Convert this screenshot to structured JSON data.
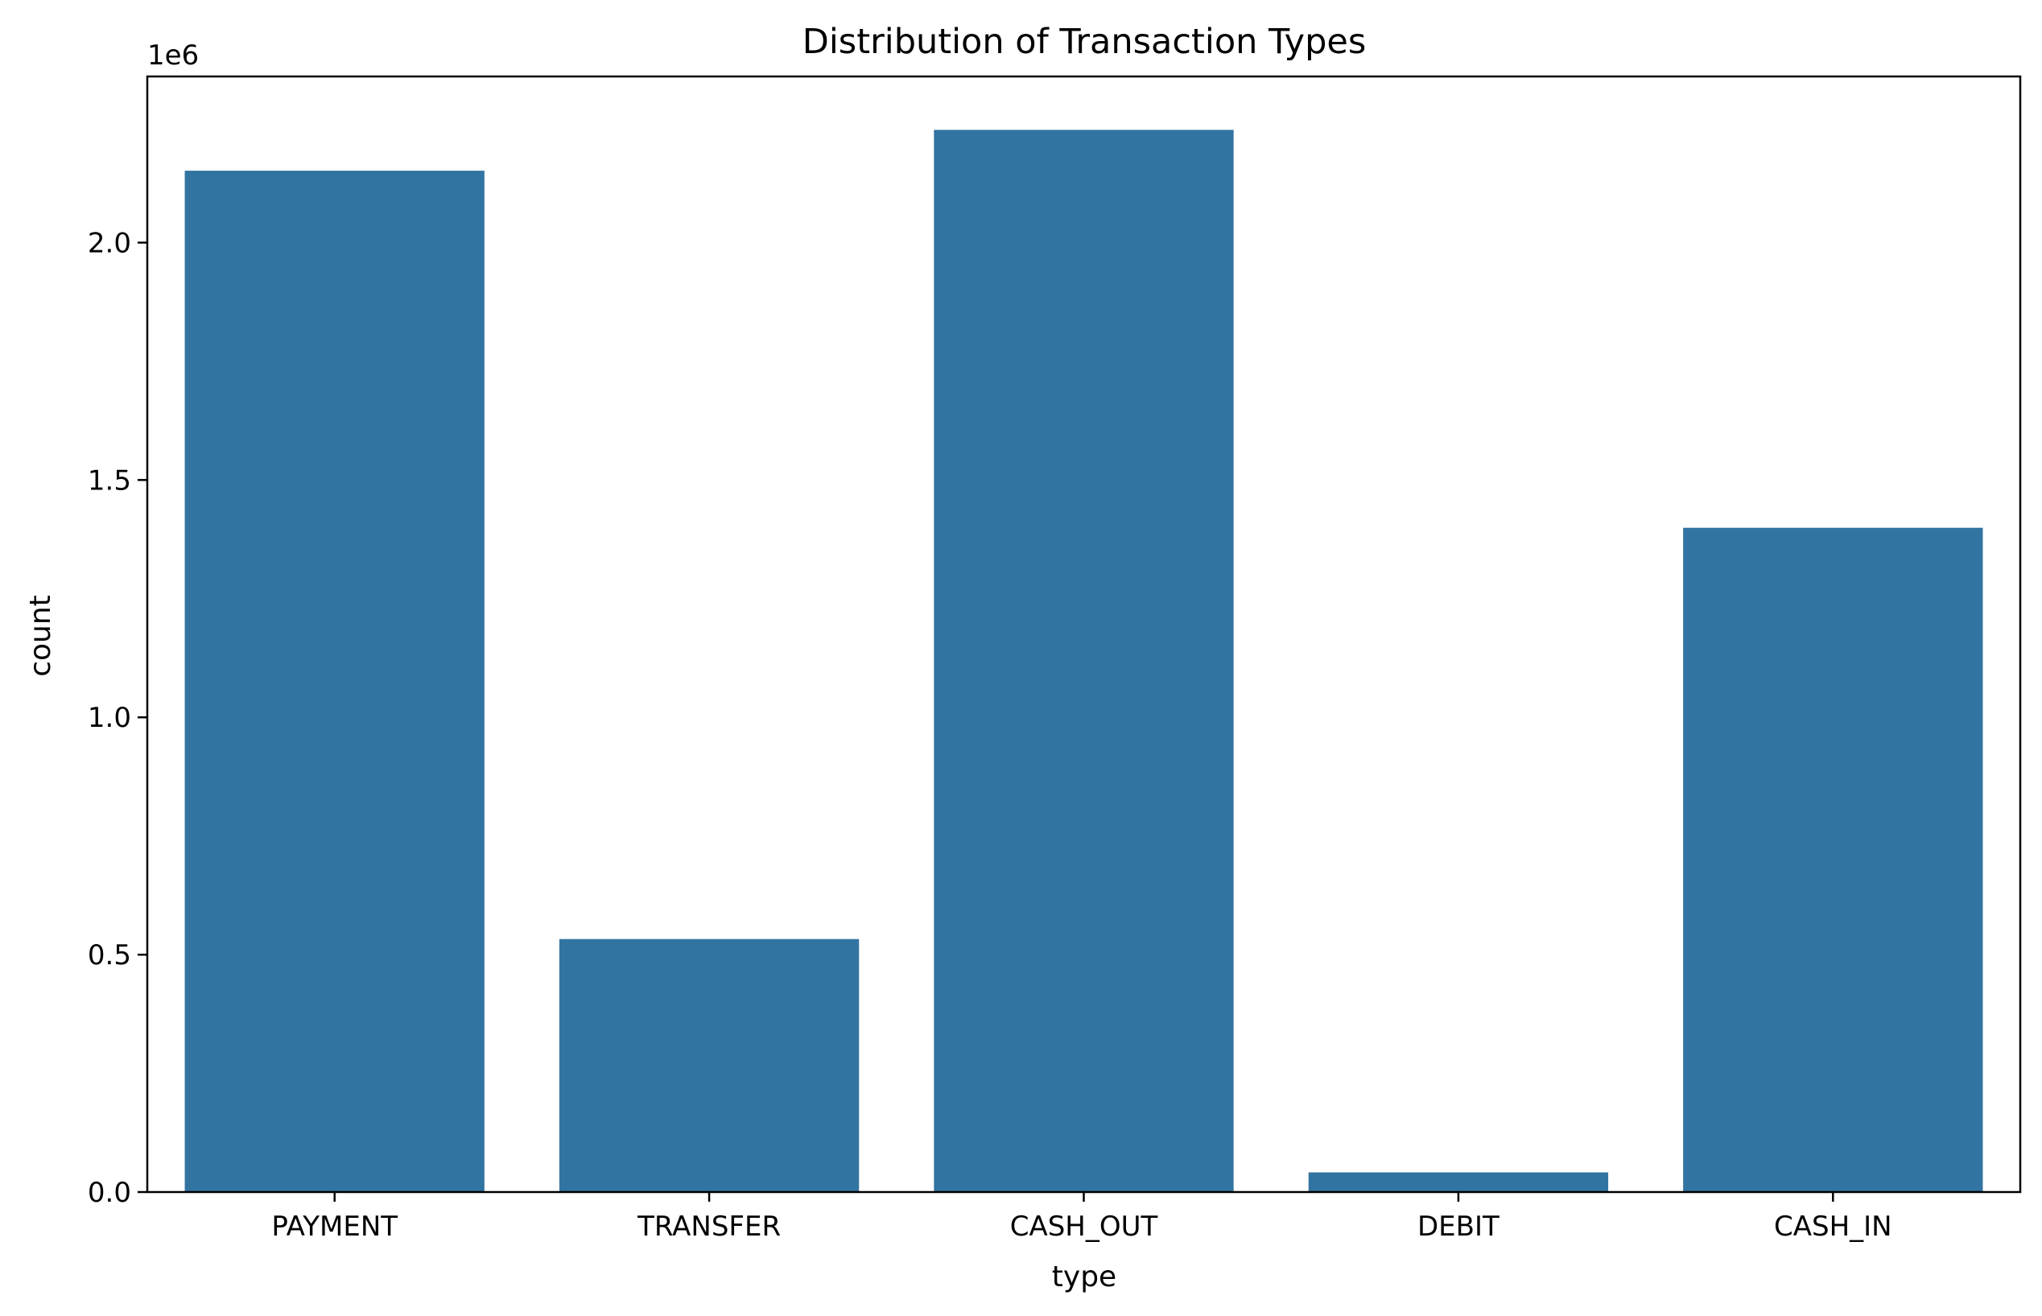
{
  "chart_data": {
    "type": "bar",
    "title": "Distribution of Transaction Types",
    "xlabel": "type",
    "ylabel": "count",
    "offset_label": "1e6",
    "categories": [
      "PAYMENT",
      "TRANSFER",
      "CASH_OUT",
      "DEBIT",
      "CASH_IN"
    ],
    "values": [
      2151495,
      532909,
      2237500,
      41432,
      1399284
    ],
    "ylim": [
      0,
      2350000
    ],
    "yticks": [
      0,
      500000,
      1000000,
      1500000,
      2000000
    ],
    "ytick_labels": [
      "0.0",
      "0.5",
      "1.0",
      "1.5",
      "2.0"
    ],
    "bar_color": "#3274a1",
    "grid": false,
    "legend": "none"
  }
}
